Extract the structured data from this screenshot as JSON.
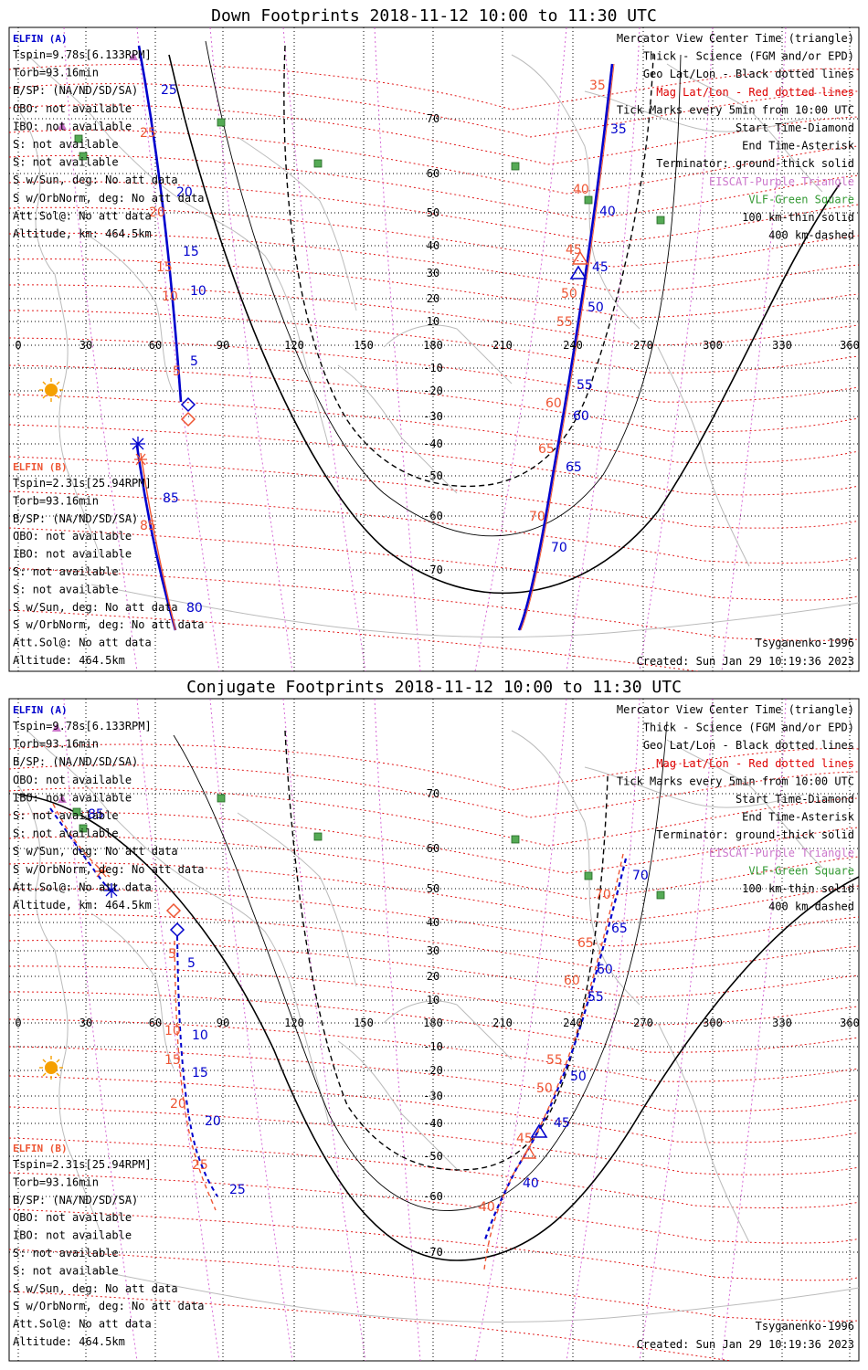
{
  "colors": {
    "elfin_a": "#0000cc",
    "elfin_b": "#ee5533",
    "mag_grid": "#dd0000",
    "geo_grid": "#000000",
    "purple": "#cc77cc",
    "vlf": "#339933",
    "sun": "#f5a000",
    "continent": "#bbbbbb"
  },
  "panels": [
    {
      "id": "down",
      "title": "Down Footprints 2018-11-12 10:00 to 11:30 UTC",
      "elfin_a": {
        "name": "ELFIN (A)",
        "lines": [
          "Tspin=9.78s[6.133RPM]",
          "Torb=93.16min",
          "B/SP: (NA/ND/SD/SA)",
          "OBO: not available",
          "IBO: not available",
          "S: not available",
          "S: not available",
          "S w/Sun, deg: No att data",
          "S w/OrbNorm, deg: No att data",
          "Att.Sol@: No att data",
          "Altitude, km: 464.5km"
        ]
      },
      "elfin_b": {
        "name": "ELFIN (B)",
        "lines": [
          "Tspin=2.31s[25.94RPM]",
          "Torb=93.16min",
          "B/SP: (NA/ND/SD/SA)",
          "OBO: not available",
          "IBO: not available",
          "S: not available",
          "S: not available",
          "S w/Sun, deg: No att data",
          "S w/OrbNorm, deg: No att data",
          "Att.Sol@: No att data",
          "Altitude: 464.5km"
        ]
      },
      "legend": [
        {
          "text": "Mercator View Center Time (triangle)",
          "color": "#000000"
        },
        {
          "text": "Thick - Science (FGM and/or EPD)",
          "color": "#000000"
        },
        {
          "text": "Geo Lat/Lon - Black dotted lines",
          "color": "#000000"
        },
        {
          "text": "Mag Lat/Lon - Red dotted lines",
          "color": "#dd0000"
        },
        {
          "text": "Tick Marks every 5min from 10:00 UTC",
          "color": "#000000"
        },
        {
          "text": "Start Time-Diamond",
          "color": "#000000"
        },
        {
          "text": "End Time-Asterisk",
          "color": "#000000"
        },
        {
          "text": "Terminator: ground-thick solid",
          "color": "#000000"
        },
        {
          "text": "EISCAT-Purple Triangle",
          "color": "#cc77cc"
        },
        {
          "text": "VLF-Green Square",
          "color": "#339933"
        },
        {
          "text": "100 km-thin solid",
          "color": "#000000"
        },
        {
          "text": "400 km-dashed",
          "color": "#000000"
        }
      ],
      "model": "Tsyganenko-1996",
      "created": "Created: Sun Jan 29 10:19:36 2023",
      "lon_ticks": [
        "0",
        "30",
        "60",
        "90",
        "120",
        "150",
        "180",
        "210",
        "240",
        "270",
        "300",
        "330",
        "360"
      ],
      "lat_ticks": [
        "70",
        "60",
        "50",
        "40",
        "30",
        "20",
        "10",
        "-10",
        "-20",
        "-30",
        "-40",
        "-50",
        "-60",
        "-70"
      ],
      "track_labels": [
        {
          "t": "25",
          "c": "a"
        },
        {
          "t": "25",
          "c": "b"
        },
        {
          "t": "20",
          "c": "a"
        },
        {
          "t": "20",
          "c": "b"
        },
        {
          "t": "15",
          "c": "a"
        },
        {
          "t": "15",
          "c": "b"
        },
        {
          "t": "10",
          "c": "a"
        },
        {
          "t": "10",
          "c": "b"
        },
        {
          "t": "5",
          "c": "a"
        },
        {
          "t": "5",
          "c": "b"
        },
        {
          "t": "35",
          "c": "b"
        },
        {
          "t": "35",
          "c": "a"
        },
        {
          "t": "40",
          "c": "b"
        },
        {
          "t": "40",
          "c": "a"
        },
        {
          "t": "45",
          "c": "b"
        },
        {
          "t": "45",
          "c": "a"
        },
        {
          "t": "50",
          "c": "b"
        },
        {
          "t": "50",
          "c": "a"
        },
        {
          "t": "55",
          "c": "b"
        },
        {
          "t": "55",
          "c": "a"
        },
        {
          "t": "60",
          "c": "b"
        },
        {
          "t": "60",
          "c": "a"
        },
        {
          "t": "65",
          "c": "b"
        },
        {
          "t": "65",
          "c": "a"
        },
        {
          "t": "70",
          "c": "b"
        },
        {
          "t": "70",
          "c": "a"
        },
        {
          "t": "85",
          "c": "a"
        },
        {
          "t": "85",
          "c": "b"
        },
        {
          "t": "80",
          "c": "a"
        }
      ]
    },
    {
      "id": "conj",
      "title": "Conjugate Footprints 2018-11-12 10:00 to 11:30 UTC",
      "elfin_a": {
        "name": "ELFIN (A)",
        "lines": [
          "Tspin=9.78s[6.133RPM]",
          "Torb=93.16min",
          "B/SP: (NA/ND/SD/SA)",
          "OBO: not available",
          "IBO: not available",
          "S: not available",
          "S: not available",
          "S w/Sun, deg: No att data",
          "S w/OrbNorm, deg: No att data",
          "Att.Sol@: No att data",
          "Altitude, km: 464.5km"
        ]
      },
      "elfin_b": {
        "name": "ELFIN (B)",
        "lines": [
          "Tspin=2.31s[25.94RPM]",
          "Torb=93.16min",
          "B/SP: (NA/ND/SD/SA)",
          "OBO: not available",
          "IBO: not available",
          "S: not available",
          "S: not available",
          "S w/Sun, deg: No att data",
          "S w/OrbNorm, deg: No att data",
          "Att.Sol@: No att data",
          "Altitude: 464.5km"
        ]
      },
      "legend": [
        {
          "text": "Mercator View Center Time (triangle)",
          "color": "#000000"
        },
        {
          "text": "Thick - Science (FGM and/or EPD)",
          "color": "#000000"
        },
        {
          "text": "Geo Lat/Lon - Black dotted lines",
          "color": "#000000"
        },
        {
          "text": "Mag Lat/Lon - Red dotted lines",
          "color": "#dd0000"
        },
        {
          "text": "Tick Marks every 5min from 10:00 UTC",
          "color": "#000000"
        },
        {
          "text": "Start Time-Diamond",
          "color": "#000000"
        },
        {
          "text": "End Time-Asterisk",
          "color": "#000000"
        },
        {
          "text": "Terminator: ground-thick solid",
          "color": "#000000"
        },
        {
          "text": "EISCAT-Purple Triangle",
          "color": "#cc77cc"
        },
        {
          "text": "VLF-Green Square",
          "color": "#339933"
        },
        {
          "text": "100 km-thin solid",
          "color": "#000000"
        },
        {
          "text": "400 km-dashed",
          "color": "#000000"
        }
      ],
      "model": "Tsyganenko-1996",
      "created": "Created: Sun Jan 29 10:19:36 2023",
      "lon_ticks": [
        "0",
        "30",
        "60",
        "90",
        "120",
        "150",
        "180",
        "210",
        "240",
        "270",
        "300",
        "330",
        "360"
      ],
      "lat_ticks": [
        "70",
        "60",
        "50",
        "40",
        "30",
        "20",
        "10",
        "-10",
        "-20",
        "-30",
        "-40",
        "-50",
        "-60",
        "-70"
      ],
      "track_labels": [
        {
          "t": "85",
          "c": "a"
        },
        {
          "t": "5",
          "c": "b"
        },
        {
          "t": "5",
          "c": "a"
        },
        {
          "t": "10",
          "c": "b"
        },
        {
          "t": "10",
          "c": "a"
        },
        {
          "t": "15",
          "c": "b"
        },
        {
          "t": "15",
          "c": "a"
        },
        {
          "t": "20",
          "c": "b"
        },
        {
          "t": "20",
          "c": "a"
        },
        {
          "t": "25",
          "c": "b"
        },
        {
          "t": "25",
          "c": "a"
        },
        {
          "t": "70",
          "c": "a"
        },
        {
          "t": "70",
          "c": "b"
        },
        {
          "t": "65",
          "c": "a"
        },
        {
          "t": "65",
          "c": "b"
        },
        {
          "t": "60",
          "c": "a"
        },
        {
          "t": "60",
          "c": "b"
        },
        {
          "t": "55",
          "c": "a"
        },
        {
          "t": "55",
          "c": "b"
        },
        {
          "t": "50",
          "c": "a"
        },
        {
          "t": "50",
          "c": "b"
        },
        {
          "t": "45",
          "c": "a"
        },
        {
          "t": "45",
          "c": "b"
        },
        {
          "t": "40",
          "c": "a"
        },
        {
          "t": "40",
          "c": "b"
        }
      ]
    }
  ]
}
